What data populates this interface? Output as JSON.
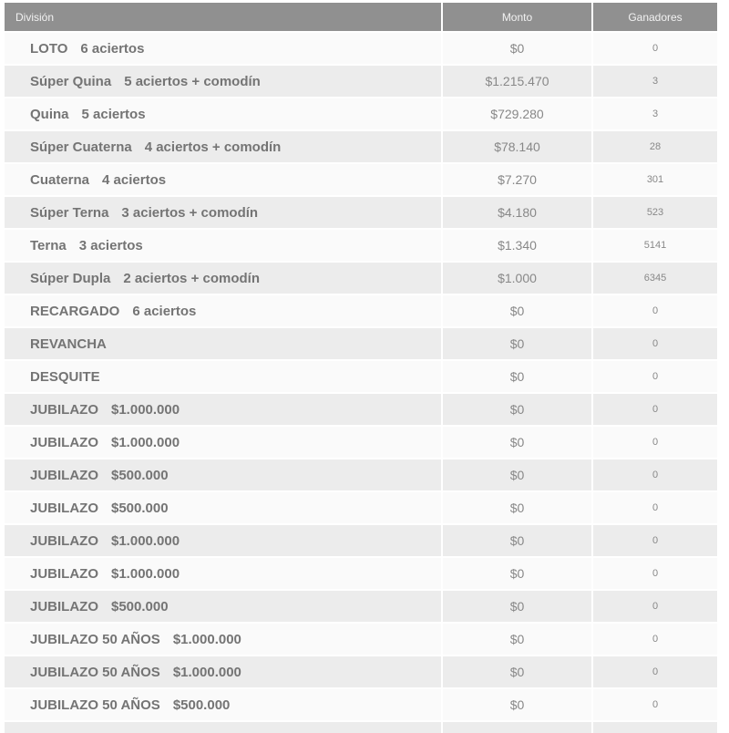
{
  "table": {
    "columns": [
      {
        "label": "División"
      },
      {
        "label": "Monto"
      },
      {
        "label": "Ganadores"
      }
    ],
    "rows": [
      {
        "division": "LOTO",
        "detail": "6 aciertos",
        "monto": "$0",
        "ganadores": "0"
      },
      {
        "division": "Súper Quina",
        "detail": "5 aciertos + comodín",
        "monto": "$1.215.470",
        "ganadores": "3"
      },
      {
        "division": "Quina",
        "detail": "5 aciertos",
        "monto": "$729.280",
        "ganadores": "3"
      },
      {
        "division": "Súper Cuaterna",
        "detail": "4 aciertos + comodín",
        "monto": "$78.140",
        "ganadores": "28"
      },
      {
        "division": "Cuaterna",
        "detail": "4 aciertos",
        "monto": "$7.270",
        "ganadores": "301"
      },
      {
        "division": "Súper Terna",
        "detail": "3 aciertos + comodín",
        "monto": "$4.180",
        "ganadores": "523"
      },
      {
        "division": "Terna",
        "detail": "3 aciertos",
        "monto": "$1.340",
        "ganadores": "5141"
      },
      {
        "division": "Súper Dupla",
        "detail": "2 aciertos + comodín",
        "monto": "$1.000",
        "ganadores": "6345"
      },
      {
        "division": "RECARGADO",
        "detail": "6 aciertos",
        "monto": "$0",
        "ganadores": "0"
      },
      {
        "division": "REVANCHA",
        "detail": "",
        "monto": "$0",
        "ganadores": "0"
      },
      {
        "division": "DESQUITE",
        "detail": "",
        "monto": "$0",
        "ganadores": "0"
      },
      {
        "division": "JUBILAZO",
        "detail": "$1.000.000",
        "monto": "$0",
        "ganadores": "0"
      },
      {
        "division": "JUBILAZO",
        "detail": "$1.000.000",
        "monto": "$0",
        "ganadores": "0"
      },
      {
        "division": "JUBILAZO",
        "detail": "$500.000",
        "monto": "$0",
        "ganadores": "0"
      },
      {
        "division": "JUBILAZO",
        "detail": "$500.000",
        "monto": "$0",
        "ganadores": "0"
      },
      {
        "division": "JUBILAZO",
        "detail": "$1.000.000",
        "monto": "$0",
        "ganadores": "0"
      },
      {
        "division": "JUBILAZO",
        "detail": "$1.000.000",
        "monto": "$0",
        "ganadores": "0"
      },
      {
        "division": "JUBILAZO",
        "detail": "$500.000",
        "monto": "$0",
        "ganadores": "0"
      },
      {
        "division": "JUBILAZO 50 AÑOS",
        "detail": "$1.000.000",
        "monto": "$0",
        "ganadores": "0"
      },
      {
        "division": "JUBILAZO 50 AÑOS",
        "detail": "$1.000.000",
        "monto": "$0",
        "ganadores": "0"
      },
      {
        "division": "JUBILAZO 50 AÑOS",
        "detail": "$500.000",
        "monto": "$0",
        "ganadores": "0"
      }
    ]
  },
  "colors": {
    "header_bg": "#909090",
    "header_text": "#f2f2f2",
    "row_bg": "#fafafa",
    "row_alt_bg": "#ececec",
    "division_text": "#747474",
    "value_text": "#888888"
  }
}
